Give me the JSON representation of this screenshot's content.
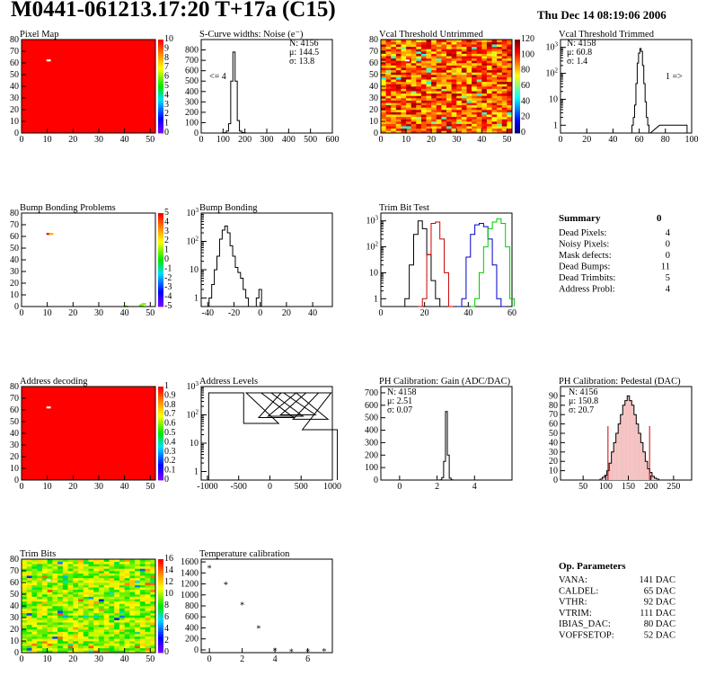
{
  "page": {
    "title": "M0441-061213.17:20 T+17a (C15)",
    "date": "Thu Dec 14 08:19:06 2006"
  },
  "colors": {
    "map_red": "#ff0000",
    "white_pixel": "#ffffff",
    "series_black": "#000000",
    "series_red": "#cc0000",
    "series_blue": "#0000cc",
    "series_green": "#00cc00",
    "fit_red": "#cc0000",
    "hist_fill": "#f4c0c0"
  },
  "chart_data": [
    {
      "id": "pixel-map",
      "type": "heatmap",
      "title": "Pixel Map",
      "xlim": [
        0,
        52
      ],
      "ylim": [
        0,
        80
      ],
      "xticks": [
        0,
        10,
        20,
        30,
        40,
        50
      ],
      "yticks": [
        0,
        10,
        20,
        30,
        40,
        50,
        60,
        70,
        80
      ],
      "zticks": [
        "0",
        "1",
        "2",
        "3",
        "4",
        "5",
        "6",
        "7",
        "8",
        "9",
        "10"
      ],
      "zlim": [
        0,
        10
      ],
      "fill": "#ff0000",
      "pixels": [
        {
          "x": 10,
          "y": 62,
          "z": 0
        }
      ]
    },
    {
      "id": "scurve-widths",
      "type": "histogram",
      "log": false,
      "title": "S-Curve widths: Noise (e⁻)",
      "xlim": [
        0,
        600
      ],
      "ylim": [
        0,
        900
      ],
      "xticks": [
        0,
        100,
        200,
        300,
        400,
        500,
        600
      ],
      "yticks": [
        0,
        100,
        200,
        300,
        400,
        500,
        600,
        700,
        800
      ],
      "stats": [
        "N: 4156",
        "μ: 144.5",
        "σ: 13.8"
      ],
      "annotation": "<= 4",
      "x": [
        80,
        90,
        100,
        110,
        120,
        130,
        140,
        150,
        160,
        170,
        180,
        190,
        200,
        210,
        220,
        230,
        240,
        250,
        260,
        270,
        280,
        290
      ],
      "values": [
        0,
        0,
        1,
        3,
        20,
        90,
        500,
        780,
        500,
        120,
        20,
        5,
        1,
        0,
        0,
        0,
        0,
        0,
        0,
        0,
        0,
        0
      ]
    },
    {
      "id": "vcal-untrimmed",
      "type": "heatmap",
      "title": "Vcal Threshold Untrimmed",
      "xlim": [
        0,
        52
      ],
      "ylim": [
        0,
        80
      ],
      "xticks": [
        0,
        10,
        20,
        30,
        40,
        50
      ],
      "yticks": [
        0,
        10,
        20,
        30,
        40,
        50,
        60,
        70,
        80
      ],
      "zticks": [
        "0",
        "20",
        "40",
        "60",
        "80",
        "100",
        "120"
      ],
      "zlim": [
        0,
        128
      ],
      "pixels": [
        {
          "x": 10,
          "y": 62,
          "z": 0
        }
      ]
    },
    {
      "id": "vcal-trimmed",
      "type": "histogram",
      "log": true,
      "title": "Vcal Threshold Trimmed",
      "xlim": [
        0,
        100
      ],
      "ylim": [
        0.5,
        2000
      ],
      "xticks": [
        0,
        20,
        40,
        60,
        80,
        100
      ],
      "stats": [
        "N: 4158",
        "μ: 60.8",
        "σ: 1.4"
      ],
      "annotation": "1 =>",
      "x": [
        55,
        56,
        57,
        58,
        59,
        60,
        61,
        62,
        63,
        64,
        65,
        66,
        67,
        68,
        76,
        88,
        94,
        96
      ],
      "values": [
        1,
        2,
        6,
        40,
        250,
        600,
        900,
        700,
        200,
        40,
        8,
        2,
        1,
        0,
        1,
        1,
        1,
        1
      ]
    },
    {
      "id": "bump-bonding-problems",
      "type": "heatmap",
      "title": "Bump Bonding Problems",
      "xlim": [
        0,
        52
      ],
      "ylim": [
        0,
        80
      ],
      "xticks": [
        0,
        10,
        20,
        30,
        40,
        50
      ],
      "yticks": [
        0,
        10,
        20,
        30,
        40,
        50,
        60,
        70,
        80
      ],
      "zticks": [
        "-5",
        "-4",
        "-3",
        "-2",
        "-1",
        "0",
        "1",
        "2",
        "3",
        "4",
        "5"
      ],
      "zlim": [
        -5,
        5
      ],
      "pixels": [
        {
          "x": 10,
          "y": 62,
          "z": 5
        },
        {
          "x": 11,
          "y": 62,
          "z": 3
        },
        {
          "x": 40,
          "y": 0,
          "z": 1
        },
        {
          "x": 46,
          "y": 1,
          "z": 1
        },
        {
          "x": 47,
          "y": 2,
          "z": 1
        }
      ]
    },
    {
      "id": "bump-bonding",
      "type": "histogram",
      "log": true,
      "title": "Bump Bonding",
      "xlim": [
        -45,
        55
      ],
      "ylim": [
        0.5,
        1000
      ],
      "xticks": [
        -40,
        -20,
        0,
        20,
        40
      ],
      "x": [
        -40,
        -38,
        -36,
        -34,
        -32,
        -30,
        -28,
        -26,
        -24,
        -22,
        -20,
        -18,
        -16,
        -14,
        -12,
        -10,
        -8,
        -6,
        -4,
        -2,
        0,
        2
      ],
      "values": [
        0,
        1,
        3,
        10,
        30,
        120,
        250,
        350,
        200,
        70,
        30,
        12,
        8,
        5,
        2,
        1,
        0,
        0,
        0,
        1,
        2,
        0
      ]
    },
    {
      "id": "trim-bit-test",
      "type": "histogram",
      "log": true,
      "title": "Trim Bit Test",
      "xlim": [
        0,
        60
      ],
      "ylim": [
        0.5,
        2000
      ],
      "xticks": [
        0,
        20,
        40,
        60
      ],
      "series": [
        {
          "x": [
            10,
            12,
            14,
            16,
            18,
            20,
            22,
            24,
            26,
            28
          ],
          "values": [
            0,
            1,
            20,
            300,
            1000,
            500,
            50,
            5,
            1,
            0
          ]
        },
        {
          "x": [
            18,
            20,
            22,
            24,
            26,
            28,
            30,
            32
          ],
          "values": [
            0,
            1,
            50,
            800,
            900,
            200,
            10,
            0
          ]
        },
        {
          "x": [
            36,
            38,
            40,
            42,
            44,
            46,
            48,
            50,
            52,
            54,
            56
          ],
          "values": [
            0,
            1,
            40,
            300,
            700,
            800,
            600,
            200,
            20,
            1,
            0
          ]
        },
        {
          "x": [
            42,
            44,
            46,
            48,
            50,
            52,
            54,
            56,
            58,
            60
          ],
          "values": [
            0,
            1,
            10,
            100,
            500,
            900,
            1200,
            800,
            100,
            1
          ]
        }
      ]
    },
    {
      "id": "address-decoding",
      "type": "heatmap",
      "title": "Address decoding",
      "xlim": [
        0,
        52
      ],
      "ylim": [
        0,
        80
      ],
      "xticks": [
        0,
        10,
        20,
        30,
        40,
        50
      ],
      "yticks": [
        0,
        10,
        20,
        30,
        40,
        50,
        60,
        70,
        80
      ],
      "zticks": [
        "0",
        "0.1",
        "0.2",
        "0.3",
        "0.4",
        "0.5",
        "0.6",
        "0.7",
        "0.8",
        "0.9",
        "1"
      ],
      "zlim": [
        0,
        1
      ],
      "fill": "#ff0000",
      "pixels": [
        {
          "x": 10,
          "y": 62,
          "z": 0
        }
      ]
    },
    {
      "id": "address-levels",
      "type": "histogram",
      "log": true,
      "title": "Address Levels",
      "xlim": [
        -1100,
        1000
      ],
      "ylim": [
        0.5,
        1000
      ],
      "xticks": [
        -1000,
        -500,
        0,
        500,
        1000
      ],
      "x": [
        -700,
        -140,
        -100,
        100,
        140,
        250,
        300,
        450,
        500,
        650,
        700,
        800
      ],
      "values": [
        600,
        50,
        600,
        80,
        600,
        90,
        600,
        100,
        600,
        70,
        600,
        30
      ]
    },
    {
      "id": "ph-gain",
      "type": "histogram",
      "log": false,
      "title": "PH Calibration: Gain (ADC/DAC)",
      "xlim": [
        -1,
        6
      ],
      "ylim": [
        0,
        750
      ],
      "xticks": [
        0,
        2,
        4
      ],
      "yticks": [
        0,
        100,
        200,
        300,
        400,
        500,
        600,
        700
      ],
      "stats": [
        "N: 4158",
        "μ: 2.51",
        "σ: 0.07"
      ],
      "x": [
        2.2,
        2.3,
        2.4,
        2.5,
        2.6,
        2.7,
        2.8
      ],
      "values": [
        2,
        20,
        150,
        550,
        200,
        15,
        2
      ]
    },
    {
      "id": "ph-pedestal",
      "type": "histogram",
      "log": false,
      "title": "PH Calibration: Pedestal (DAC)",
      "xlim": [
        0,
        290
      ],
      "ylim": [
        0,
        100
      ],
      "xticks": [
        50,
        100,
        150,
        200,
        250
      ],
      "yticks": [
        0,
        10,
        20,
        30,
        40,
        50,
        60,
        70,
        80,
        90
      ],
      "stats": [
        "N: 4156",
        "μ: 150.8",
        "σ: 20.7"
      ],
      "fit_bounds": [
        105,
        197
      ],
      "x": [
        90,
        95,
        100,
        105,
        110,
        115,
        120,
        125,
        130,
        135,
        140,
        145,
        150,
        155,
        160,
        165,
        170,
        175,
        180,
        185,
        190,
        195,
        200,
        205,
        210,
        215
      ],
      "values": [
        1,
        3,
        5,
        10,
        18,
        30,
        40,
        50,
        60,
        70,
        80,
        85,
        90,
        85,
        80,
        70,
        60,
        50,
        40,
        30,
        20,
        12,
        8,
        4,
        2,
        1
      ]
    },
    {
      "id": "trim-bits",
      "type": "heatmap",
      "title": "Trim Bits",
      "xlim": [
        0,
        52
      ],
      "ylim": [
        0,
        80
      ],
      "xticks": [
        0,
        10,
        20,
        30,
        40,
        50
      ],
      "yticks": [
        0,
        10,
        20,
        30,
        40,
        50,
        60,
        70,
        80
      ],
      "zticks": [
        "0",
        "2",
        "4",
        "6",
        "8",
        "10",
        "12",
        "14",
        "16"
      ],
      "zlim": [
        0,
        16
      ],
      "pixels": [
        {
          "x": 10,
          "y": 62,
          "z": 0
        }
      ]
    },
    {
      "id": "temperature-calibration",
      "type": "scatter",
      "title": "Temperature calibration",
      "xlim": [
        -0.5,
        7.5
      ],
      "ylim": [
        -50,
        1650
      ],
      "xticks": [
        0,
        2,
        4,
        6
      ],
      "yticks": [
        0,
        200,
        400,
        600,
        800,
        1000,
        1200,
        1400,
        1600
      ],
      "x": [
        0,
        1,
        2,
        3,
        4,
        5,
        6,
        7
      ],
      "y": [
        1540,
        1240,
        870,
        450,
        40,
        20,
        20,
        30
      ]
    }
  ],
  "summary": {
    "title": "Summary",
    "total": "0",
    "rows": [
      {
        "label": "Dead Pixels:",
        "value": "4"
      },
      {
        "label": "Noisy Pixels:",
        "value": "0"
      },
      {
        "label": "Mask defects:",
        "value": "0"
      },
      {
        "label": "Dead Bumps:",
        "value": "11"
      },
      {
        "label": "Dead Trimbits:",
        "value": "5"
      },
      {
        "label": "Address Probl:",
        "value": "4"
      }
    ]
  },
  "op_parameters": {
    "title": "Op. Parameters",
    "rows": [
      {
        "label": "VANA:",
        "value": "141 DAC"
      },
      {
        "label": "CALDEL:",
        "value": "65 DAC"
      },
      {
        "label": "VTHR:",
        "value": "92 DAC"
      },
      {
        "label": "VTRIM:",
        "value": "111 DAC"
      },
      {
        "label": "IBIAS_DAC:",
        "value": "80 DAC"
      },
      {
        "label": "VOFFSETOP:",
        "value": "52 DAC"
      }
    ]
  }
}
